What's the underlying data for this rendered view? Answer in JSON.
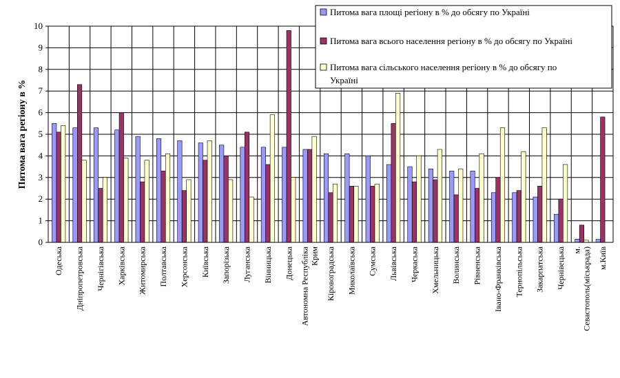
{
  "chart_data": {
    "type": "bar",
    "title": "",
    "xlabel": "",
    "ylabel": "Питома вага регіону в %",
    "ylim": [
      0,
      10
    ],
    "yticks": [
      0,
      1,
      2,
      3,
      4,
      5,
      6,
      7,
      8,
      9,
      10
    ],
    "grid": true,
    "legend_position": "top-right",
    "categories": [
      [
        "Одеська"
      ],
      [
        "Дніпропетровська"
      ],
      [
        "Чернігівська"
      ],
      [
        "Харківська"
      ],
      [
        "Житомирська"
      ],
      [
        "Полтавська"
      ],
      [
        "Херсонська"
      ],
      [
        "Київська"
      ],
      [
        "Запорізька"
      ],
      [
        "Луганська"
      ],
      [
        "Вінницька"
      ],
      [
        "Донецька"
      ],
      [
        "Автономна Республіка",
        "Крим"
      ],
      [
        "Кіровоградська"
      ],
      [
        "Миколаївська"
      ],
      [
        "Сумська"
      ],
      [
        "Львівська"
      ],
      [
        "Черкаська"
      ],
      [
        "Хмельницька"
      ],
      [
        "Волинська"
      ],
      [
        "Рівненська"
      ],
      [
        "Івано-Франківська"
      ],
      [
        "Тернопільська"
      ],
      [
        "Закарпатська"
      ],
      [
        "Чернівецька"
      ],
      [
        "м.",
        "Севастополь(міськрада)"
      ],
      [
        "м.Київ"
      ]
    ],
    "series": [
      {
        "name": "Питома вага площі регіону в % до обсягу по Україні",
        "color": "#9999ff",
        "values": [
          5.5,
          5.3,
          5.3,
          5.2,
          4.9,
          4.8,
          4.7,
          4.6,
          4.5,
          4.4,
          4.4,
          4.4,
          4.3,
          4.1,
          4.1,
          4.0,
          3.6,
          3.5,
          3.4,
          3.3,
          3.3,
          2.3,
          2.3,
          2.1,
          1.3,
          0.15,
          0.14
        ]
      },
      {
        "name": "Питома вага всього населення регіону  в % до обсягу по Україні",
        "color": "#993366",
        "values": [
          5.1,
          7.3,
          2.5,
          6.0,
          2.8,
          3.3,
          2.4,
          3.8,
          4.0,
          5.1,
          3.6,
          9.8,
          4.3,
          2.3,
          2.6,
          2.6,
          5.5,
          2.8,
          2.9,
          2.2,
          2.5,
          3.0,
          2.4,
          2.6,
          2.0,
          0.8,
          5.8
        ]
      },
      {
        "name": "Питома вага сільського населення регіону в % до обсягу по Україні",
        "color": "#ffffcc",
        "values": [
          5.4,
          3.8,
          3.0,
          3.9,
          3.8,
          4.1,
          2.9,
          4.7,
          2.9,
          2.1,
          5.9,
          3.0,
          4.9,
          2.7,
          2.6,
          2.7,
          6.9,
          4.0,
          4.3,
          3.4,
          4.1,
          5.3,
          4.2,
          5.3,
          3.6,
          0.1,
          0.0
        ]
      }
    ]
  }
}
